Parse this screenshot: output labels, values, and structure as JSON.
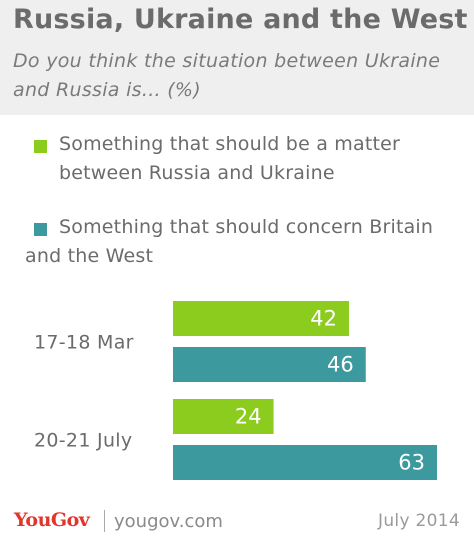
{
  "header": {
    "title": "Russia, Ukraine and the West",
    "subtitle": "Do you think the situation between Ukraine and Russia is... (%)"
  },
  "colors": {
    "series1": "#8ccc1e",
    "series2": "#3c9a9e",
    "header_bg": "#efefef",
    "brand_red": "#e0362c"
  },
  "chart_data": {
    "type": "bar",
    "orientation": "horizontal",
    "categories": [
      "17-18 Mar",
      "20-21 July"
    ],
    "series": [
      {
        "name": "Something that should be a matter between Russia and Ukraine",
        "values": [
          42,
          24
        ],
        "color": "#8ccc1e"
      },
      {
        "name": "Something that should concern Britain and the West",
        "values": [
          46,
          63
        ],
        "color": "#3c9a9e"
      }
    ],
    "xlim": [
      0,
      63
    ],
    "grid": false,
    "data_labels": true,
    "legend_position": "top"
  },
  "footer": {
    "brand": "YouGov",
    "url": "yougov.com",
    "date": "July 2014"
  }
}
